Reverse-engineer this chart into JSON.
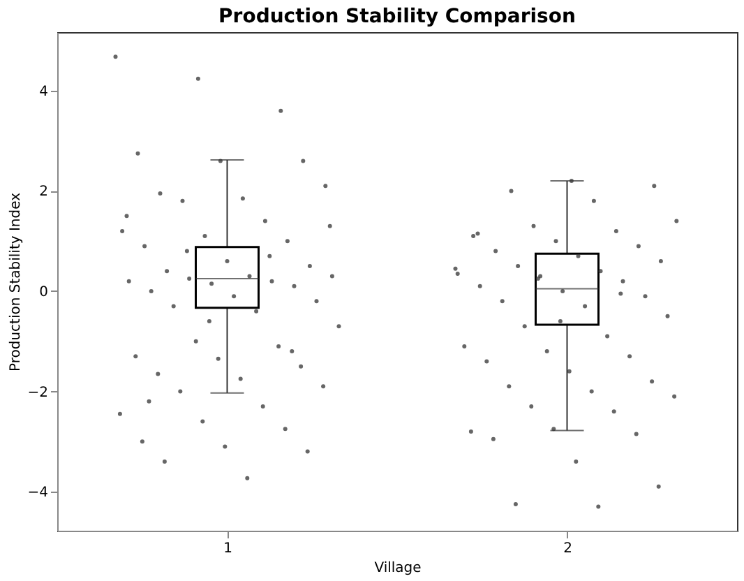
{
  "chart_data": {
    "type": "box",
    "title": "Production Stability Comparison",
    "xlabel": "Village",
    "ylabel": "Production Stability Index",
    "categories": [
      "1",
      "2"
    ],
    "boxes": [
      {
        "low": -2.03,
        "q1": -0.33,
        "median": 0.25,
        "q3": 0.88,
        "high": 2.62
      },
      {
        "low": -2.78,
        "q1": -0.67,
        "median": 0.05,
        "q3": 0.75,
        "high": 2.2
      }
    ],
    "series": [
      {
        "type": "scatter",
        "color": "#333333",
        "x": [
          "1",
          "1",
          "1",
          "1",
          "1",
          "1",
          "1",
          "1",
          "1",
          "1",
          "1",
          "1",
          "1",
          "1",
          "1",
          "1",
          "1",
          "1",
          "1",
          "1",
          "1",
          "1",
          "1",
          "1",
          "1",
          "1",
          "1",
          "1",
          "1",
          "1",
          "1",
          "1",
          "1",
          "1",
          "1",
          "1",
          "1",
          "1",
          "1",
          "1",
          "1",
          "1",
          "1",
          "1",
          "1",
          "1",
          "1",
          "1",
          "1",
          "1",
          "1",
          "1",
          "1",
          "1",
          "1",
          "1",
          "2",
          "2",
          "2",
          "2",
          "2",
          "2",
          "2",
          "2",
          "2",
          "2",
          "2",
          "2",
          "2",
          "2",
          "2",
          "2",
          "2",
          "2",
          "2",
          "2",
          "2",
          "2",
          "2",
          "2",
          "2",
          "2",
          "2",
          "2",
          "2",
          "2",
          "2",
          "2",
          "2",
          "2",
          "2",
          "2",
          "2",
          "2",
          "2",
          "2",
          "2",
          "2",
          "2",
          "2",
          "2",
          "2",
          "2",
          "2",
          "2",
          "2"
        ],
        "values": [
          4.68,
          4.24,
          3.6,
          2.75,
          2.6,
          2.6,
          1.95,
          1.85,
          2.1,
          1.8,
          1.4,
          1.2,
          1.1,
          1.0,
          0.9,
          0.6,
          0.5,
          0.4,
          0.3,
          0.3,
          0.25,
          0.2,
          0.2,
          0.15,
          0.1,
          0.0,
          -0.1,
          -0.2,
          -0.3,
          -0.4,
          -0.7,
          -1.0,
          -1.1,
          -1.3,
          -1.35,
          -1.5,
          -1.65,
          -1.75,
          -1.9,
          -2.0,
          -2.3,
          -2.45,
          -2.6,
          -2.75,
          -3.0,
          -3.1,
          -3.2,
          -3.4,
          -3.73,
          1.3,
          0.8,
          0.7,
          1.5,
          -0.6,
          -1.2,
          -2.2,
          2.2,
          2.1,
          2.0,
          1.8,
          1.4,
          1.3,
          1.2,
          1.1,
          1.0,
          0.9,
          0.8,
          0.7,
          0.6,
          0.5,
          0.4,
          0.35,
          0.3,
          0.2,
          0.1,
          0.0,
          -0.1,
          -0.2,
          -0.3,
          -0.5,
          -0.7,
          -0.9,
          -1.1,
          -1.2,
          -1.3,
          -1.4,
          -1.6,
          -1.8,
          -1.9,
          -2.0,
          -2.1,
          -2.3,
          -2.4,
          -2.8,
          -2.75,
          -2.85,
          -2.95,
          -3.4,
          -3.9,
          -4.25,
          -4.3,
          0.45,
          0.25,
          -0.05,
          1.15,
          -0.6
        ]
      }
    ],
    "ylim": [
      -4.78,
      5.17
    ],
    "yticks": [
      -4,
      -2,
      0,
      2,
      4
    ],
    "grid": false
  }
}
